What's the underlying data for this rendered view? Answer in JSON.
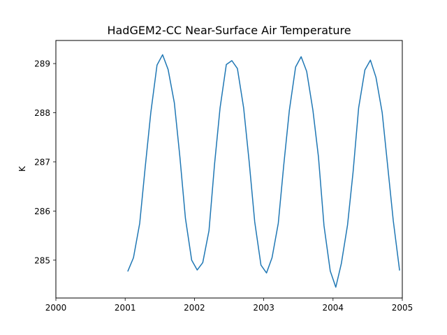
{
  "chart_data": {
    "type": "line",
    "title": "HadGEM2-CC Near-Surface Air Temperature",
    "xlabel": "",
    "ylabel": "K",
    "xlim": [
      2000,
      2005
    ],
    "ylim": [
      284.23,
      289.47
    ],
    "x_ticks": [
      "2000",
      "2001",
      "2002",
      "2003",
      "2004",
      "2005"
    ],
    "y_ticks": [
      "285",
      "286",
      "287",
      "288",
      "289"
    ],
    "grid": false,
    "legend": "none",
    "line_color": "#1f77b4",
    "series": [
      {
        "x": [
          2001.04,
          2001.12,
          2001.21,
          2001.29,
          2001.37,
          2001.46,
          2001.54,
          2001.62,
          2001.71,
          2001.79,
          2001.87,
          2001.96,
          2002.04,
          2002.12,
          2002.21,
          2002.29,
          2002.37,
          2002.46,
          2002.54,
          2002.62,
          2002.71,
          2002.79,
          2002.87,
          2002.96,
          2003.04,
          2003.12,
          2003.21,
          2003.29,
          2003.37,
          2003.46,
          2003.54,
          2003.62,
          2003.71,
          2003.79,
          2003.87,
          2003.96,
          2004.04,
          2004.12,
          2004.21,
          2004.29,
          2004.37,
          2004.46,
          2004.54,
          2004.62,
          2004.71,
          2004.79,
          2004.87,
          2004.96
        ],
        "values": [
          284.78,
          285.05,
          285.75,
          286.9,
          288.0,
          288.97,
          289.18,
          288.88,
          288.2,
          287.1,
          285.85,
          285.0,
          284.8,
          284.95,
          285.6,
          286.95,
          288.1,
          288.98,
          289.06,
          288.9,
          288.1,
          287.0,
          285.78,
          284.9,
          284.74,
          285.05,
          285.75,
          286.95,
          288.05,
          288.93,
          289.14,
          288.84,
          288.05,
          287.1,
          285.7,
          284.78,
          284.45,
          284.93,
          285.72,
          286.8,
          288.1,
          288.87,
          289.07,
          288.72,
          288.0,
          286.9,
          285.8,
          284.8
        ]
      }
    ]
  }
}
